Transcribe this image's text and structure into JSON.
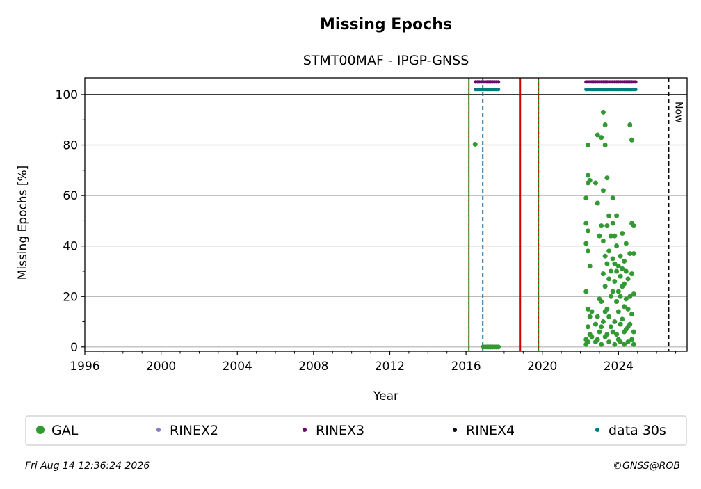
{
  "chart_data": {
    "type": "scatter",
    "title": "Missing Epochs",
    "subtitle": "STMT00MAF - IPGP-GNSS",
    "x_label": "Year",
    "y_label": "Missing Epochs [%]",
    "xlim": [
      1996,
      2027.6
    ],
    "ylim": [
      -1.7,
      106.6
    ],
    "xticks": [
      1996,
      2000,
      2004,
      2008,
      2012,
      2016,
      2020,
      2024
    ],
    "xminorticks": [
      1997,
      1998,
      1999,
      2001,
      2002,
      2003,
      2005,
      2006,
      2007,
      2009,
      2010,
      2011,
      2013,
      2014,
      2015,
      2017,
      2018,
      2019,
      2021,
      2022,
      2023,
      2025,
      2026,
      2027
    ],
    "yticks": [
      0,
      20,
      40,
      60,
      80,
      100
    ],
    "yminorticks": [
      10,
      30,
      50,
      70,
      90
    ],
    "grid": true,
    "hline": 100,
    "vlines": [
      {
        "x": 2016.15,
        "color": "#2a8a2a",
        "dash": "red"
      },
      {
        "x": 2016.88,
        "color": "#1f6fa8",
        "dash": "plain"
      },
      {
        "x": 2018.85,
        "color": "#d00000",
        "dash": "none"
      },
      {
        "x": 2019.8,
        "color": "#2a8a2a",
        "dash": "red"
      },
      {
        "x": 2026.63,
        "color": "#000000",
        "dash": "plain",
        "label": "Now"
      }
    ],
    "series": [
      {
        "name": "GAL",
        "color": "#339933",
        "size": 3.5,
        "x": [
          2016.48,
          2016.9,
          2017.0,
          2017.1,
          2017.2,
          2017.3,
          2017.4,
          2017.5,
          2017.6,
          2017.7,
          2022.3,
          2022.3,
          2022.3,
          2022.3,
          2022.3,
          2022.3,
          2022.4,
          2022.4,
          2022.4,
          2022.4,
          2022.4,
          2022.4,
          2022.4,
          2022.4,
          2022.5,
          2022.5,
          2022.5,
          2022.5,
          2022.6,
          2022.6,
          2022.8,
          2022.8,
          2022.8,
          2022.9,
          2022.9,
          2022.9,
          2022.9,
          2023.0,
          2023.0,
          2023.0,
          2023.1,
          2023.1,
          2023.1,
          2023.1,
          2023.1,
          2023.2,
          2023.2,
          2023.2,
          2023.2,
          2023.2,
          2023.3,
          2023.3,
          2023.3,
          2023.3,
          2023.3,
          2023.3,
          2023.4,
          2023.4,
          2023.4,
          2023.4,
          2023.4,
          2023.5,
          2023.5,
          2023.5,
          2023.5,
          2023.5,
          2023.6,
          2023.6,
          2023.6,
          2023.6,
          2023.7,
          2023.7,
          2023.7,
          2023.7,
          2023.7,
          2023.8,
          2023.8,
          2023.8,
          2023.8,
          2023.8,
          2023.9,
          2023.9,
          2023.9,
          2023.9,
          2023.9,
          2024.0,
          2024.0,
          2024.0,
          2024.0,
          2024.1,
          2024.1,
          2024.1,
          2024.1,
          2024.1,
          2024.2,
          2024.2,
          2024.2,
          2024.2,
          2024.3,
          2024.3,
          2024.3,
          2024.3,
          2024.3,
          2024.4,
          2024.4,
          2024.4,
          2024.4,
          2024.5,
          2024.5,
          2024.5,
          2024.5,
          2024.6,
          2024.6,
          2024.6,
          2024.6,
          2024.7,
          2024.7,
          2024.7,
          2024.7,
          2024.7,
          2024.8,
          2024.8,
          2024.8,
          2024.8,
          2024.8
        ],
        "values": [
          80.3,
          0,
          0,
          0,
          0,
          0,
          0,
          0,
          0,
          0,
          59,
          49,
          41,
          22,
          3,
          1,
          80,
          68,
          65,
          46,
          38,
          15,
          8,
          2,
          66,
          32,
          12,
          5,
          14,
          4,
          65,
          9,
          2,
          84,
          57,
          12,
          3,
          44,
          19,
          6,
          83,
          48,
          18,
          8,
          1,
          93,
          62,
          42,
          29,
          10,
          88,
          80,
          36,
          24,
          14,
          4,
          67,
          48,
          33,
          15,
          5,
          52,
          38,
          27,
          12,
          2,
          44,
          30,
          20,
          8,
          59,
          49,
          35,
          22,
          6,
          44,
          33,
          26,
          10,
          1,
          52,
          40,
          30,
          18,
          5,
          32,
          22,
          14,
          3,
          36,
          28,
          20,
          9,
          2,
          45,
          31,
          24,
          11,
          34,
          25,
          16,
          6,
          1,
          41,
          30,
          19,
          7,
          27,
          15,
          8,
          2,
          88,
          37,
          20,
          9,
          82,
          49,
          29,
          13,
          3,
          48,
          37,
          21,
          6,
          1
        ]
      },
      {
        "name": "RINEX2",
        "color": "#8c7fbf",
        "size": 2.5,
        "x": [],
        "values": []
      },
      {
        "name": "RINEX3",
        "color": "#6a0a6a",
        "size": 2.6,
        "x": [
          2016.5,
          2016.6,
          2016.7,
          2016.8,
          2016.9,
          2017.0,
          2017.1,
          2017.2,
          2017.3,
          2017.4,
          2017.5,
          2017.6,
          2017.7,
          2022.3,
          2022.4,
          2022.5,
          2022.6,
          2022.7,
          2022.8,
          2022.9,
          2023.0,
          2023.1,
          2023.2,
          2023.3,
          2023.4,
          2023.5,
          2023.6,
          2023.7,
          2023.8,
          2023.9,
          2024.0,
          2024.1,
          2024.2,
          2024.3,
          2024.4,
          2024.5,
          2024.6,
          2024.7,
          2024.8,
          2024.9
        ],
        "values": [
          105,
          105,
          105,
          105,
          105,
          105,
          105,
          105,
          105,
          105,
          105,
          105,
          105,
          105,
          105,
          105,
          105,
          105,
          105,
          105,
          105,
          105,
          105,
          105,
          105,
          105,
          105,
          105,
          105,
          105,
          105,
          105,
          105,
          105,
          105,
          105,
          105,
          105,
          105,
          105
        ]
      },
      {
        "name": "RINEX4",
        "color": "#1a0820",
        "size": 2.5,
        "x": [],
        "values": []
      },
      {
        "name": "data 30s",
        "color": "#007b7b",
        "size": 2.6,
        "x": [
          2016.5,
          2016.6,
          2016.7,
          2016.8,
          2016.9,
          2017.0,
          2017.1,
          2017.2,
          2017.3,
          2017.4,
          2017.5,
          2017.6,
          2017.7,
          2022.3,
          2022.4,
          2022.5,
          2022.6,
          2022.7,
          2022.8,
          2022.9,
          2023.0,
          2023.1,
          2023.2,
          2023.3,
          2023.4,
          2023.5,
          2023.6,
          2023.7,
          2023.8,
          2023.9,
          2024.0,
          2024.1,
          2024.2,
          2024.3,
          2024.4,
          2024.5,
          2024.6,
          2024.7,
          2024.8,
          2024.9
        ],
        "values": [
          102,
          102,
          102,
          102,
          102,
          102,
          102,
          102,
          102,
          102,
          102,
          102,
          102,
          102,
          102,
          102,
          102,
          102,
          102,
          102,
          102,
          102,
          102,
          102,
          102,
          102,
          102,
          102,
          102,
          102,
          102,
          102,
          102,
          102,
          102,
          102,
          102,
          102,
          102,
          102
        ]
      }
    ],
    "timestamp": "Fri Aug 14 12:36:24 2026",
    "credit": "©GNSS@ROB"
  }
}
